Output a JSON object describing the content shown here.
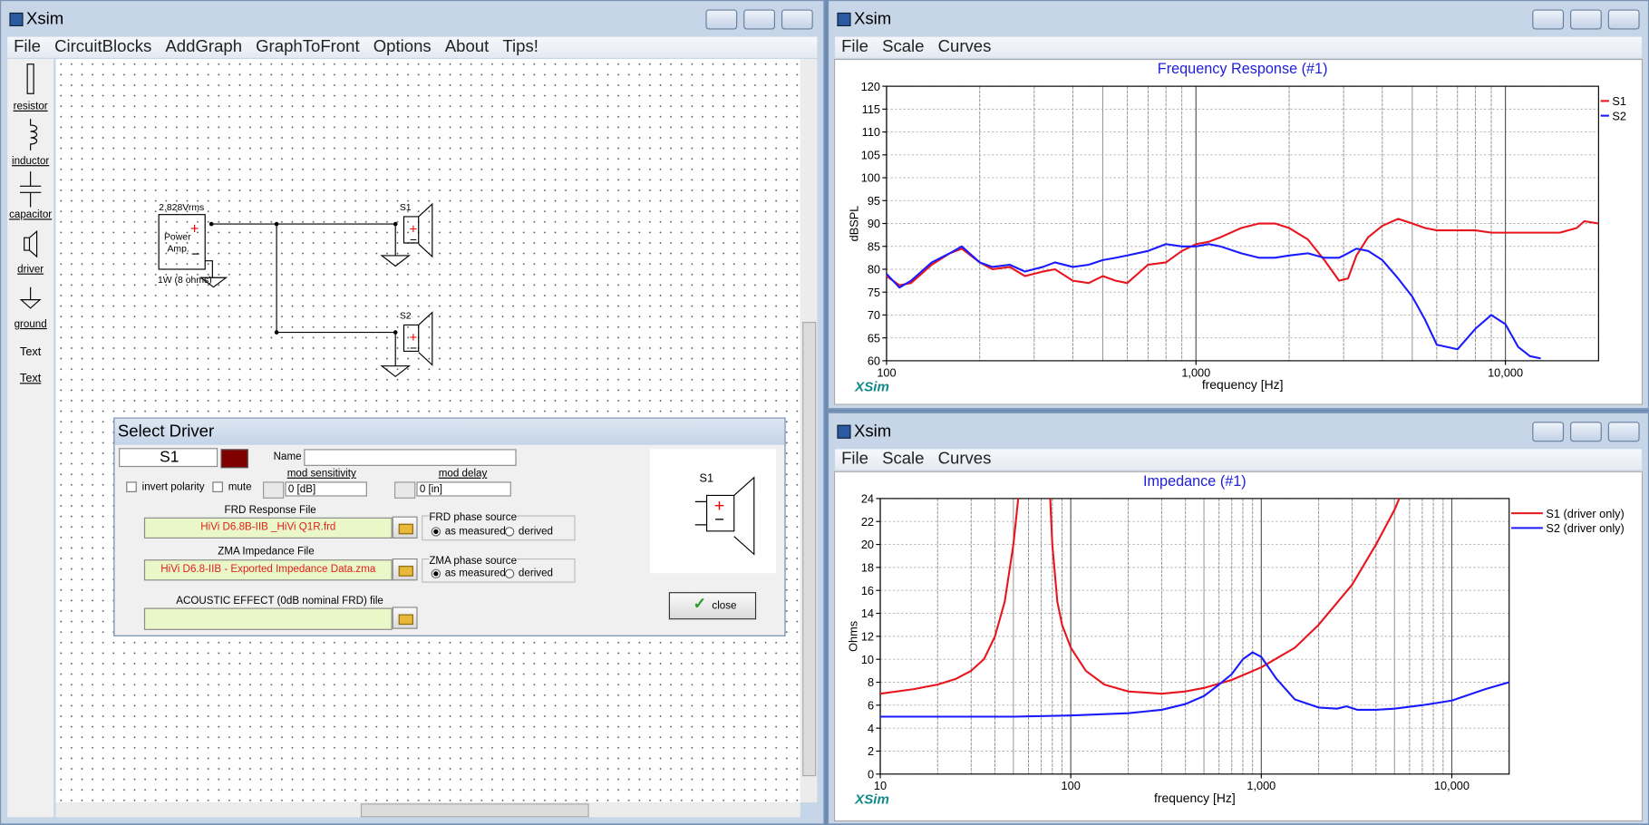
{
  "windows": [
    {
      "title": "Xsim",
      "menu": [
        "File",
        "CircuitBlocks",
        "AddGraph",
        "GraphToFront",
        "Options",
        "About",
        "Tips!"
      ]
    },
    {
      "title": "Xsim",
      "menu": [
        "File",
        "Scale",
        "Curves"
      ]
    },
    {
      "title": "Xsim",
      "menu": [
        "File",
        "Scale",
        "Curves"
      ]
    }
  ],
  "toolbox": [
    "resistor",
    "inductor",
    "capacitor",
    "driver",
    "ground",
    "Text",
    "Text"
  ],
  "circuit": {
    "source_voltage": "2.828Vrms",
    "amp_label": [
      "Power",
      "Amp."
    ],
    "amp_rating": "1W (8 ohms)",
    "drivers": [
      "S1",
      "S2"
    ]
  },
  "dialog": {
    "title": "Select Driver",
    "driver": "S1",
    "name_label": "Name",
    "invert_polarity": "invert polarity",
    "mute": "mute",
    "mod_sensitivity_label": "mod sensitivity",
    "mod_sensitivity": "0 [dB]",
    "mod_delay_label": "mod delay",
    "mod_delay": "0 [in]",
    "frd_label": "FRD Response File",
    "frd_file": "HiVi D6.8B-IIB _HiVi Q1R.frd",
    "frd_phase_label": "FRD phase source",
    "frd_phase_options": [
      "as measured",
      "derived"
    ],
    "zma_label": "ZMA Impedance File",
    "zma_file": "HiVi D6.8-IIB - Exported Impedance Data.zma",
    "zma_phase_label": "ZMA phase source",
    "zma_phase_options": [
      "as measured",
      "derived"
    ],
    "acoustic_label": "ACOUSTIC EFFECT (0dB nominal FRD) file",
    "close": "close",
    "preview_label": "S1"
  },
  "chart_data": [
    {
      "type": "line",
      "title": "Frequency Response (#1)",
      "xlabel": "frequency [Hz]",
      "ylabel": "dBSPL",
      "brand": "XSim",
      "xscale": "log",
      "xlim": [
        100,
        20000
      ],
      "ylim": [
        60,
        120
      ],
      "xticks": [
        100,
        {
          "value": 1000,
          "label": "1,000"
        },
        {
          "value": 10000,
          "label": "10,000"
        }
      ],
      "yticks": [
        60,
        65,
        70,
        75,
        80,
        85,
        90,
        95,
        100,
        105,
        110,
        115,
        120
      ],
      "grid": true,
      "minor_grid": true,
      "legend": "right",
      "series": [
        {
          "name": "S1",
          "color": "#e8141e",
          "x": [
            100,
            110,
            120,
            140,
            160,
            175,
            200,
            220,
            250,
            280,
            320,
            350,
            400,
            450,
            500,
            550,
            600,
            700,
            800,
            900,
            1000,
            1100,
            1200,
            1400,
            1600,
            1800,
            2000,
            2300,
            2600,
            2900,
            3100,
            3300,
            3600,
            4000,
            4500,
            5000,
            5500,
            6000,
            7000,
            8000,
            9000,
            10000,
            12000,
            15000,
            17000,
            18000,
            20000
          ],
          "values": [
            78.5,
            76.5,
            77,
            81,
            83.5,
            84.5,
            81.5,
            80,
            80.5,
            78.5,
            79.5,
            80,
            77.5,
            77,
            78.5,
            77.5,
            77,
            81,
            81.5,
            84,
            85.5,
            86,
            87,
            89,
            90,
            90,
            89,
            86.5,
            82,
            77.5,
            78,
            83,
            87,
            89.5,
            91,
            90,
            89,
            88.5,
            88.5,
            88.5,
            88,
            88,
            88,
            88,
            89,
            90.5,
            90
          ]
        },
        {
          "name": "S2",
          "color": "#1a1aff",
          "x": [
            100,
            110,
            120,
            140,
            160,
            175,
            200,
            220,
            250,
            280,
            320,
            350,
            400,
            450,
            500,
            550,
            600,
            700,
            800,
            900,
            1000,
            1100,
            1200,
            1400,
            1600,
            1800,
            2000,
            2300,
            2600,
            2900,
            3100,
            3300,
            3600,
            4000,
            4500,
            5000,
            5500,
            6000,
            7000,
            8000,
            9000,
            10000,
            11000,
            12000,
            13000
          ],
          "values": [
            79,
            76,
            77.5,
            81.5,
            83.5,
            85,
            81.5,
            80.5,
            81,
            79.5,
            80.5,
            81.5,
            80.5,
            81,
            82,
            82.5,
            83,
            84,
            85.5,
            85,
            85,
            85.5,
            85,
            83.5,
            82.5,
            82.5,
            83,
            83.5,
            82.5,
            82.5,
            83.5,
            84.5,
            84,
            82,
            78,
            74,
            69,
            63.5,
            62.5,
            67,
            70,
            68,
            63,
            61,
            60.5
          ]
        }
      ]
    },
    {
      "type": "line",
      "title": "Impedance (#1)",
      "xlabel": "frequency [Hz]",
      "ylabel": "Ohms",
      "brand": "XSim",
      "xscale": "log",
      "xlim": [
        10,
        20000
      ],
      "ylim": [
        0,
        24
      ],
      "xticks": [
        10,
        100,
        {
          "value": 1000,
          "label": "1,000"
        },
        {
          "value": 10000,
          "label": "10,000"
        }
      ],
      "yticks": [
        0,
        2,
        4,
        6,
        8,
        10,
        12,
        14,
        16,
        18,
        20,
        22,
        24
      ],
      "grid": true,
      "minor_grid": true,
      "legend": "right",
      "series": [
        {
          "name": "S1 (driver only)",
          "color": "#e8141e",
          "x": [
            10,
            15,
            20,
            25,
            30,
            35,
            40,
            45,
            50,
            53,
            65,
            78,
            80,
            85,
            90,
            100,
            120,
            150,
            200,
            300,
            400,
            500,
            700,
            1000,
            1500,
            2000,
            3000,
            4000,
            5000,
            5300,
            6000
          ],
          "values": [
            7,
            7.4,
            7.8,
            8.3,
            9,
            10,
            12,
            15,
            20,
            24,
            null,
            24,
            20,
            15,
            13,
            11,
            9,
            7.8,
            7.2,
            7,
            7.2,
            7.5,
            8.2,
            9.3,
            11,
            13,
            16.5,
            20,
            23,
            24,
            null
          ]
        },
        {
          "name": "S2 (driver only)",
          "color": "#1a1aff",
          "x": [
            10,
            50,
            100,
            200,
            300,
            400,
            500,
            600,
            700,
            800,
            900,
            1000,
            1200,
            1500,
            2000,
            2500,
            2800,
            3200,
            4000,
            5000,
            7000,
            10000,
            15000,
            20000
          ],
          "values": [
            5,
            5,
            5.1,
            5.3,
            5.6,
            6.1,
            6.8,
            7.8,
            8.7,
            10,
            10.6,
            10.2,
            8.3,
            6.5,
            5.8,
            5.7,
            5.9,
            5.6,
            5.6,
            5.7,
            6,
            6.4,
            7.4,
            8
          ]
        }
      ]
    }
  ]
}
